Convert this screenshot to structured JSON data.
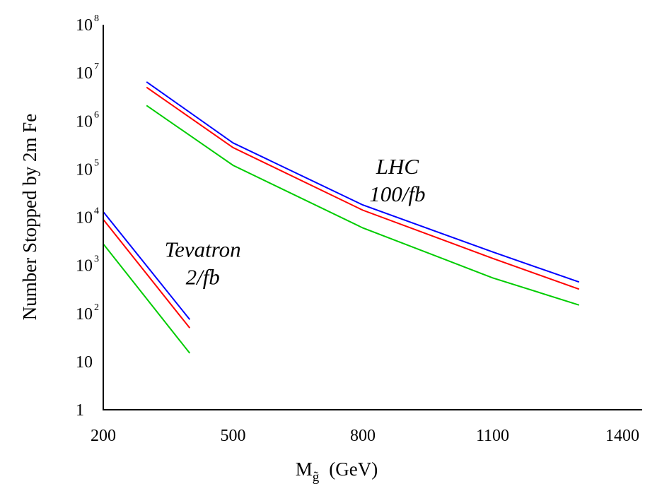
{
  "chart_data": {
    "type": "line",
    "title": "",
    "ylabel": "Number Stopped by 2m Fe",
    "xlabel": {
      "main": "M",
      "subscript": "g̃",
      "unit": "(GeV)"
    },
    "x_scale": "linear",
    "y_scale": "log",
    "xlim": [
      200,
      1400
    ],
    "ylim": [
      1,
      100000000
    ],
    "x_ticks": [
      {
        "value": 200,
        "label": "200"
      },
      {
        "value": 500,
        "label": "500"
      },
      {
        "value": 800,
        "label": "800"
      },
      {
        "value": 1100,
        "label": "1100"
      },
      {
        "value": 1400,
        "label": "1400"
      }
    ],
    "y_ticks": [
      {
        "value": 1,
        "base": "1",
        "exp": ""
      },
      {
        "value": 10,
        "base": "10",
        "exp": ""
      },
      {
        "value": 100,
        "base": "10",
        "exp": "2"
      },
      {
        "value": 1000,
        "base": "10",
        "exp": "3"
      },
      {
        "value": 10000,
        "base": "10",
        "exp": "4"
      },
      {
        "value": 100000,
        "base": "10",
        "exp": "5"
      },
      {
        "value": 1000000,
        "base": "10",
        "exp": "6"
      },
      {
        "value": 10000000,
        "base": "10",
        "exp": "7"
      },
      {
        "value": 100000000,
        "base": "10",
        "exp": "8"
      }
    ],
    "grid": false,
    "legend": "none",
    "annotations": [
      {
        "id": "tevatron",
        "lines": [
          "Tevatron",
          "2/fb"
        ],
        "x": 430,
        "y": 1500
      },
      {
        "id": "lhc",
        "lines": [
          "LHC",
          "100/fb"
        ],
        "x": 880,
        "y": 80000
      }
    ],
    "series": [
      {
        "group": "Tevatron",
        "color": "#0000ff",
        "x": [
          200,
          400
        ],
        "y": [
          13000,
          75
        ]
      },
      {
        "group": "Tevatron",
        "color": "#ff0000",
        "x": [
          200,
          400
        ],
        "y": [
          9000,
          50
        ]
      },
      {
        "group": "Tevatron",
        "color": "#00cc00",
        "x": [
          200,
          400
        ],
        "y": [
          2800,
          15
        ]
      },
      {
        "group": "LHC",
        "color": "#0000ff",
        "x": [
          300,
          500,
          800,
          1100,
          1300
        ],
        "y": [
          6500000,
          350000,
          18000,
          1900,
          450
        ]
      },
      {
        "group": "LHC",
        "color": "#ff0000",
        "x": [
          300,
          500,
          800,
          1100,
          1300
        ],
        "y": [
          5000000,
          280000,
          14000,
          1400,
          320
        ]
      },
      {
        "group": "LHC",
        "color": "#00cc00",
        "x": [
          300,
          500,
          800,
          1100,
          1300
        ],
        "y": [
          2100000,
          120000,
          6000,
          550,
          150
        ]
      }
    ]
  }
}
